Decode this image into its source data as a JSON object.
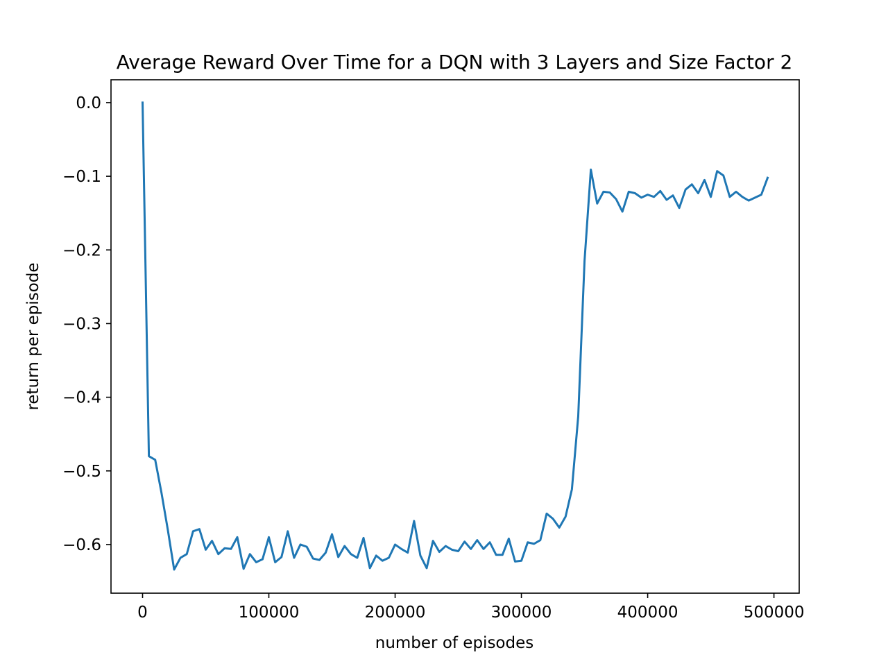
{
  "chart_data": {
    "type": "line",
    "title": "Average Reward Over Time for a DQN with 3 Layers and Size Factor 2",
    "xlabel": "number of episodes",
    "ylabel": "return per episode",
    "xlim": [
      -25000,
      520000
    ],
    "ylim": [
      -0.666,
      0.031
    ],
    "x_ticks": [
      0,
      100000,
      200000,
      300000,
      400000,
      500000
    ],
    "x_tick_labels": [
      "0",
      "100000",
      "200000",
      "300000",
      "400000",
      "500000"
    ],
    "y_ticks": [
      0.0,
      -0.1,
      -0.2,
      -0.3,
      -0.4,
      -0.5,
      -0.6
    ],
    "y_tick_labels": [
      "0.0",
      "−0.1",
      "−0.2",
      "−0.3",
      "−0.4",
      "−0.5",
      "−0.6"
    ],
    "grid": false,
    "series": [
      {
        "color": "#1f77b4",
        "x": [
          0,
          5000,
          10000,
          15000,
          20000,
          25000,
          30000,
          35000,
          40000,
          45000,
          50000,
          55000,
          60000,
          65000,
          70000,
          75000,
          80000,
          85000,
          90000,
          95000,
          100000,
          105000,
          110000,
          115000,
          120000,
          125000,
          130000,
          135000,
          140000,
          145000,
          150000,
          155000,
          160000,
          165000,
          170000,
          175000,
          180000,
          185000,
          190000,
          195000,
          200000,
          205000,
          210000,
          215000,
          220000,
          225000,
          230000,
          235000,
          240000,
          245000,
          250000,
          255000,
          260000,
          265000,
          270000,
          275000,
          280000,
          285000,
          290000,
          295000,
          300000,
          305000,
          310000,
          315000,
          320000,
          325000,
          330000,
          335000,
          340000,
          345000,
          350000,
          355000,
          360000,
          365000,
          370000,
          375000,
          380000,
          385000,
          390000,
          395000,
          400000,
          405000,
          410000,
          415000,
          420000,
          425000,
          430000,
          435000,
          440000,
          445000,
          450000,
          455000,
          460000,
          465000,
          470000,
          475000,
          480000,
          485000,
          490000,
          495000
        ],
        "values": [
          0.0,
          -0.48,
          -0.485,
          -0.53,
          -0.58,
          -0.634,
          -0.618,
          -0.613,
          -0.582,
          -0.579,
          -0.607,
          -0.595,
          -0.613,
          -0.605,
          -0.606,
          -0.59,
          -0.633,
          -0.613,
          -0.624,
          -0.62,
          -0.59,
          -0.624,
          -0.617,
          -0.582,
          -0.618,
          -0.6,
          -0.603,
          -0.619,
          -0.621,
          -0.611,
          -0.586,
          -0.617,
          -0.602,
          -0.613,
          -0.618,
          -0.591,
          -0.632,
          -0.615,
          -0.622,
          -0.618,
          -0.6,
          -0.606,
          -0.611,
          -0.568,
          -0.615,
          -0.632,
          -0.595,
          -0.61,
          -0.602,
          -0.607,
          -0.609,
          -0.596,
          -0.606,
          -0.594,
          -0.606,
          -0.597,
          -0.614,
          -0.614,
          -0.592,
          -0.623,
          -0.622,
          -0.597,
          -0.599,
          -0.594,
          -0.558,
          -0.565,
          -0.577,
          -0.562,
          -0.525,
          -0.426,
          -0.215,
          -0.091,
          -0.137,
          -0.121,
          -0.122,
          -0.131,
          -0.148,
          -0.121,
          -0.123,
          -0.129,
          -0.125,
          -0.128,
          -0.12,
          -0.132,
          -0.126,
          -0.143,
          -0.118,
          -0.111,
          -0.123,
          -0.105,
          -0.128,
          -0.093,
          -0.099,
          -0.128,
          -0.121,
          -0.128,
          -0.133,
          -0.129,
          -0.125,
          -0.102
        ]
      }
    ]
  }
}
